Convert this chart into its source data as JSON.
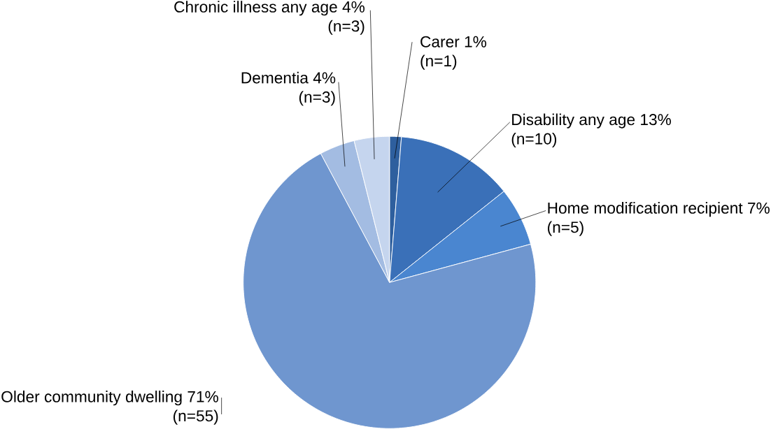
{
  "chart_data": {
    "type": "pie",
    "categories": [
      "Carer 1%",
      "Disability any age 13%",
      "Home modification recipient 7%",
      "Older community dwelling 71%",
      "Dementia 4%",
      "Chronic illness any age 4%"
    ],
    "values": [
      1,
      10,
      5,
      55,
      3,
      3
    ],
    "value_labels": [
      "(n=1)",
      "(n=10)",
      "(n=5)",
      "(n=55)",
      "(n=3)",
      "(n=3)"
    ],
    "colors": [
      "#2e5f9e",
      "#3a70b8",
      "#4a86d0",
      "#6f96cf",
      "#a3bce2",
      "#c5d5ee"
    ]
  }
}
